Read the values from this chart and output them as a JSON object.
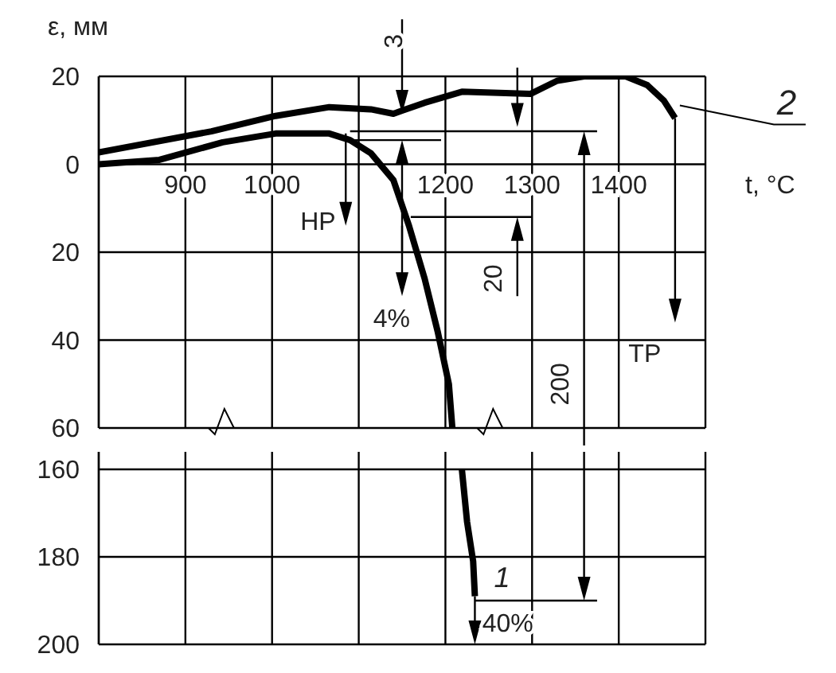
{
  "chart_data": [
    {
      "type": "line",
      "xlabel": "t, °C",
      "ylabel": "ε, мм",
      "xlim": [
        800,
        1500
      ],
      "xticks": [
        900,
        1000,
        {
          "value": 1100,
          "label": null
        },
        1200,
        1300,
        1400
      ],
      "ylim": [
        -60,
        20
      ],
      "yticks": [
        {
          "value": -60,
          "label": "60"
        },
        {
          "value": -40,
          "label": "40"
        },
        {
          "value": -20,
          "label": "20"
        },
        0,
        20
      ],
      "grid": true,
      "line_style": "solid",
      "series": [
        {
          "color": "#000000",
          "x": [
            800,
            870,
            943,
            1004,
            1066,
            1090,
            1114,
            1140,
            1158,
            1176,
            1191,
            1204,
            1208
          ],
          "values": [
            0,
            1,
            5,
            7,
            7,
            5.5,
            2.5,
            -3.6,
            -14,
            -26,
            -38,
            -50,
            -60
          ]
        },
        {
          "name": "2",
          "color": "#000000",
          "x": [
            800,
            930,
            1004,
            1066,
            1114,
            1140,
            1176,
            1219,
            1298,
            1329,
            1360,
            1408,
            1433,
            1452,
            1465
          ],
          "values": [
            2.7,
            7.5,
            11,
            13,
            12.5,
            11.5,
            14,
            16.5,
            16,
            19,
            20,
            20,
            18,
            14.5,
            10.5
          ]
        }
      ],
      "annotations": [
        "HP",
        "4%",
        "TP",
        "3",
        "20",
        "200"
      ]
    },
    {
      "type": "line",
      "xlim": [
        800,
        1500
      ],
      "xticks": [
        900,
        1000,
        1100,
        1200,
        1300,
        1400
      ],
      "ylim": [
        -200,
        -156
      ],
      "yticks": [
        {
          "value": -200,
          "label": "200"
        },
        {
          "value": -180,
          "label": "180"
        },
        {
          "value": -160,
          "label": "160"
        }
      ],
      "grid": true,
      "line_style": "solid",
      "tick_labels": "y",
      "series": [
        {
          "name": "1",
          "color": "#000000",
          "x": [
            1219,
            1225,
            1232,
            1234
          ],
          "values": [
            -160,
            -172,
            -181,
            -189
          ]
        }
      ],
      "annotations": [
        "40%"
      ]
    }
  ]
}
